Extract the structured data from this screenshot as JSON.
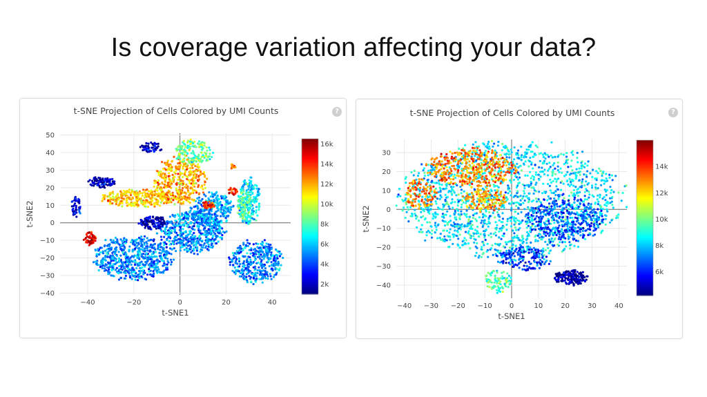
{
  "slide": {
    "title": "Is coverage variation affecting your data?"
  },
  "colors": {
    "jet": [
      "#00007f",
      "#0000ff",
      "#007fff",
      "#00ffff",
      "#7fff7f",
      "#ffff00",
      "#ff7f00",
      "#ff0000",
      "#7f0000"
    ]
  },
  "chart_data": [
    {
      "type": "scatter",
      "title": "t-SNE Projection of Cells Colored by UMI Counts",
      "xlabel": "t-SNE1",
      "ylabel": "t-SNE2",
      "xlim": [
        -52,
        48
      ],
      "ylim": [
        -41,
        51
      ],
      "xticks": [
        -40,
        -20,
        0,
        20,
        40
      ],
      "xtick_labels": [
        "−40",
        "−20",
        "0",
        "20",
        "40"
      ],
      "yticks": [
        50,
        40,
        30,
        20,
        10,
        0,
        -10,
        -20,
        -30,
        -40
      ],
      "ytick_labels": [
        "50",
        "40",
        "30",
        "20",
        "10",
        "0",
        "−10",
        "−20",
        "−30",
        "−40"
      ],
      "colorbar": {
        "min": 1000,
        "max": 16500,
        "ticks": [
          16000,
          14000,
          12000,
          10000,
          8000,
          6000,
          4000,
          2000
        ],
        "tick_labels": [
          "16k",
          "14k",
          "12k",
          "10k",
          "8k",
          "6k",
          "4k",
          "2k"
        ],
        "colorscale": "jet"
      },
      "grid": true,
      "clusters": [
        {
          "cx": -20,
          "cy": -20,
          "rx": 17,
          "ry": 12,
          "n": 620,
          "umi": 5000
        },
        {
          "cx": 5,
          "cy": -5,
          "rx": 14,
          "ry": 12,
          "n": 520,
          "umi": 5000
        },
        {
          "cx": 14,
          "cy": 8,
          "rx": 9,
          "ry": 9,
          "n": 260,
          "umi": 5400
        },
        {
          "cx": 33,
          "cy": -22,
          "rx": 11,
          "ry": 12,
          "n": 380,
          "umi": 5000
        },
        {
          "cx": 30,
          "cy": 12,
          "rx": 5,
          "ry": 13,
          "n": 200,
          "umi": 6500
        },
        {
          "cx": 28,
          "cy": 10,
          "rx": 3,
          "ry": 8,
          "n": 80,
          "umi": 8000
        },
        {
          "cx": -18,
          "cy": 14,
          "rx": 16,
          "ry": 5,
          "n": 320,
          "umi": 11500
        },
        {
          "cx": 0,
          "cy": 24,
          "rx": 11,
          "ry": 13,
          "n": 380,
          "umi": 12000
        },
        {
          "cx": 6,
          "cy": 40,
          "rx": 8,
          "ry": 7,
          "n": 160,
          "umi": 8500
        },
        {
          "cx": -12,
          "cy": 0,
          "rx": 6,
          "ry": 4,
          "n": 110,
          "umi": 1800
        },
        {
          "cx": -34,
          "cy": 23,
          "rx": 6,
          "ry": 3,
          "n": 90,
          "umi": 1800
        },
        {
          "cx": -13,
          "cy": 43,
          "rx": 5,
          "ry": 3,
          "n": 50,
          "umi": 2200
        },
        {
          "cx": -39,
          "cy": -9,
          "rx": 2.5,
          "ry": 3.5,
          "n": 55,
          "umi": 15000
        },
        {
          "cx": -45,
          "cy": 9,
          "rx": 2,
          "ry": 6,
          "n": 45,
          "umi": 2600
        },
        {
          "cx": 12,
          "cy": 10,
          "rx": 3,
          "ry": 2,
          "n": 40,
          "umi": 14000
        },
        {
          "cx": 23,
          "cy": 18,
          "rx": 2,
          "ry": 2,
          "n": 25,
          "umi": 14000
        },
        {
          "cx": 23,
          "cy": 32,
          "rx": 1,
          "ry": 2,
          "n": 15,
          "umi": 13000
        }
      ]
    },
    {
      "type": "scatter",
      "title": "t-SNE Projection of Cells Colored by UMI Counts",
      "xlabel": "t-SNE1",
      "ylabel": "t-SNE2",
      "xlim": [
        -43,
        43
      ],
      "ylim": [
        -47,
        37
      ],
      "xticks": [
        -40,
        -30,
        -20,
        -10,
        0,
        10,
        20,
        30,
        40
      ],
      "xtick_labels": [
        "−40",
        "−30",
        "−20",
        "−10",
        "0",
        "10",
        "20",
        "30",
        "40"
      ],
      "yticks": [
        30,
        20,
        10,
        0,
        -10,
        -20,
        -30,
        -40
      ],
      "ytick_labels": [
        "30",
        "20",
        "10",
        "0",
        "−10",
        "−20",
        "−30",
        "−40"
      ],
      "colorbar": {
        "min": 4200,
        "max": 16000,
        "ticks": [
          14000,
          12000,
          10000,
          8000,
          6000
        ],
        "tick_labels": [
          "14k",
          "12k",
          "10k",
          "8k",
          "6k"
        ],
        "colorscale": "jet"
      },
      "grid": true,
      "clusters": [
        {
          "cx": 0,
          "cy": 5,
          "rx": 40,
          "ry": 30,
          "n": 1700,
          "umi": 8300
        },
        {
          "cx": -15,
          "cy": 22,
          "rx": 16,
          "ry": 10,
          "n": 420,
          "umi": 13000
        },
        {
          "cx": -34,
          "cy": 8,
          "rx": 6,
          "ry": 8,
          "n": 110,
          "umi": 13000
        },
        {
          "cx": -10,
          "cy": 5,
          "rx": 8,
          "ry": 6,
          "n": 150,
          "umi": 12500
        },
        {
          "cx": 22,
          "cy": -36,
          "rx": 6,
          "ry": 4,
          "n": 160,
          "umi": 4500
        },
        {
          "cx": 5,
          "cy": -26,
          "rx": 10,
          "ry": 6,
          "n": 160,
          "umi": 6200
        },
        {
          "cx": -5,
          "cy": -38,
          "rx": 5,
          "ry": 6,
          "n": 80,
          "umi": 9500
        },
        {
          "cx": 20,
          "cy": -5,
          "rx": 14,
          "ry": 12,
          "n": 350,
          "umi": 6500
        }
      ]
    }
  ]
}
